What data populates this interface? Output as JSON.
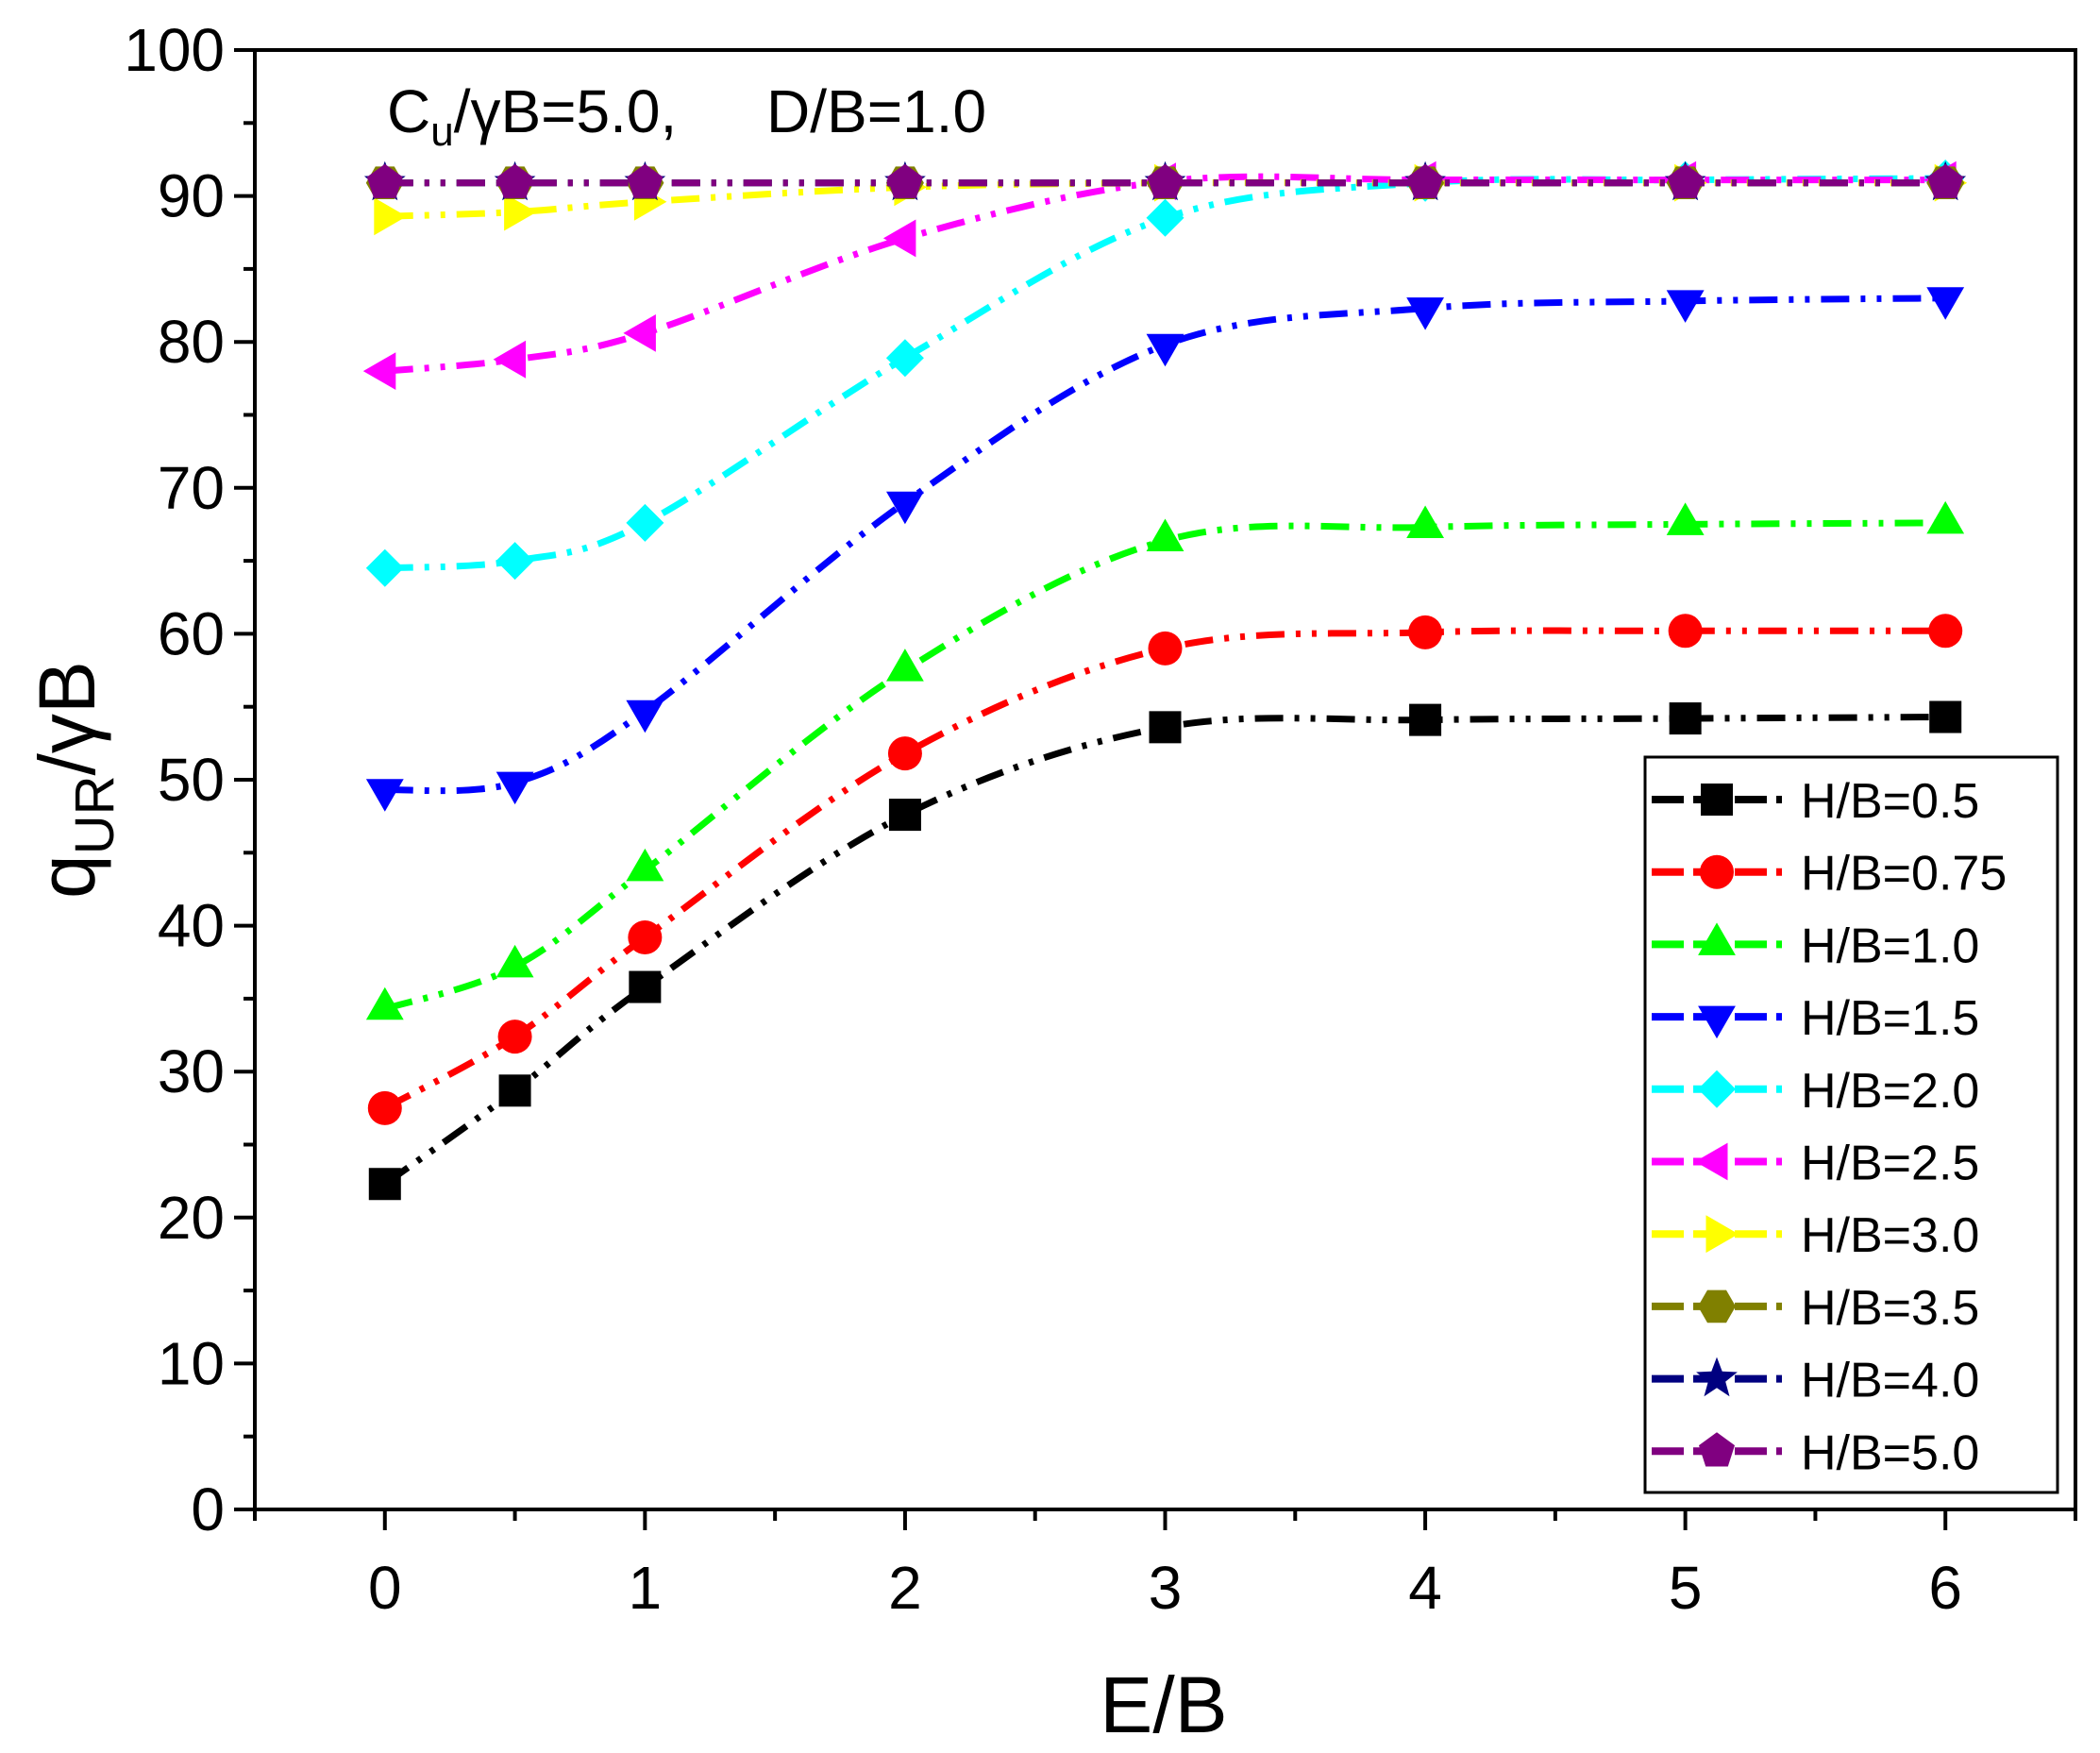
{
  "chart_data": {
    "type": "line",
    "title": "",
    "annotation": {
      "cu": "C",
      "cu_sub": "u",
      "gamma_b": "/γB=5.0,",
      "db": "D/B=1.0"
    },
    "xlabel": "E/B",
    "ylabel": {
      "q": "q",
      "sub": "UR",
      "rest": "/γB"
    },
    "xlim": [
      -0.5,
      6.5
    ],
    "ylim": [
      0,
      100
    ],
    "xticks": [
      0,
      1,
      2,
      3,
      4,
      5,
      6
    ],
    "yticks": [
      0,
      10,
      20,
      30,
      40,
      50,
      60,
      70,
      80,
      90,
      100
    ],
    "legend_position": "bottom-right",
    "x": [
      0,
      0.5,
      1,
      2,
      3,
      4,
      5,
      6
    ],
    "series": [
      {
        "name": "H/B=0.5",
        "color": "#000000",
        "marker": "square",
        "values": [
          22.3,
          28.7,
          35.8,
          47.6,
          53.6,
          54.1,
          54.2,
          54.3
        ]
      },
      {
        "name": "H/B=0.75",
        "color": "#ff0000",
        "marker": "circle",
        "values": [
          27.5,
          32.4,
          39.2,
          51.8,
          59.0,
          60.1,
          60.2,
          60.2
        ]
      },
      {
        "name": "H/B=1.0",
        "color": "#00ff00",
        "marker": "triangle-up",
        "values": [
          34.3,
          37.2,
          43.8,
          57.5,
          66.4,
          67.3,
          67.5,
          67.6
        ]
      },
      {
        "name": "H/B=1.5",
        "color": "#0000ff",
        "marker": "triangle-down",
        "values": [
          49.3,
          49.8,
          54.7,
          69.0,
          79.8,
          82.3,
          82.8,
          83.0
        ]
      },
      {
        "name": "H/B=2.0",
        "color": "#00ffff",
        "marker": "diamond",
        "values": [
          64.5,
          65.0,
          67.6,
          78.9,
          88.5,
          90.9,
          91.1,
          91.2
        ]
      },
      {
        "name": "H/B=2.5",
        "color": "#ff00ff",
        "marker": "triangle-left",
        "values": [
          78.0,
          78.8,
          80.6,
          87.1,
          91.0,
          91.1,
          91.1,
          91.1
        ]
      },
      {
        "name": "H/B=3.0",
        "color": "#ffff00",
        "marker": "triangle-right",
        "values": [
          88.6,
          88.9,
          89.6,
          90.6,
          90.9,
          90.9,
          90.9,
          90.9
        ]
      },
      {
        "name": "H/B=3.5",
        "color": "#808000",
        "marker": "hexagon",
        "values": [
          90.9,
          90.9,
          90.9,
          90.9,
          90.9,
          90.9,
          90.9,
          90.9
        ]
      },
      {
        "name": "H/B=4.0",
        "color": "#000080",
        "marker": "star",
        "values": [
          90.9,
          90.9,
          90.9,
          90.9,
          90.9,
          90.9,
          90.9,
          90.9
        ]
      },
      {
        "name": "H/B=5.0",
        "color": "#800080",
        "marker": "pentagon",
        "values": [
          90.9,
          90.9,
          90.9,
          90.9,
          90.9,
          90.9,
          90.9,
          90.9
        ]
      }
    ]
  }
}
